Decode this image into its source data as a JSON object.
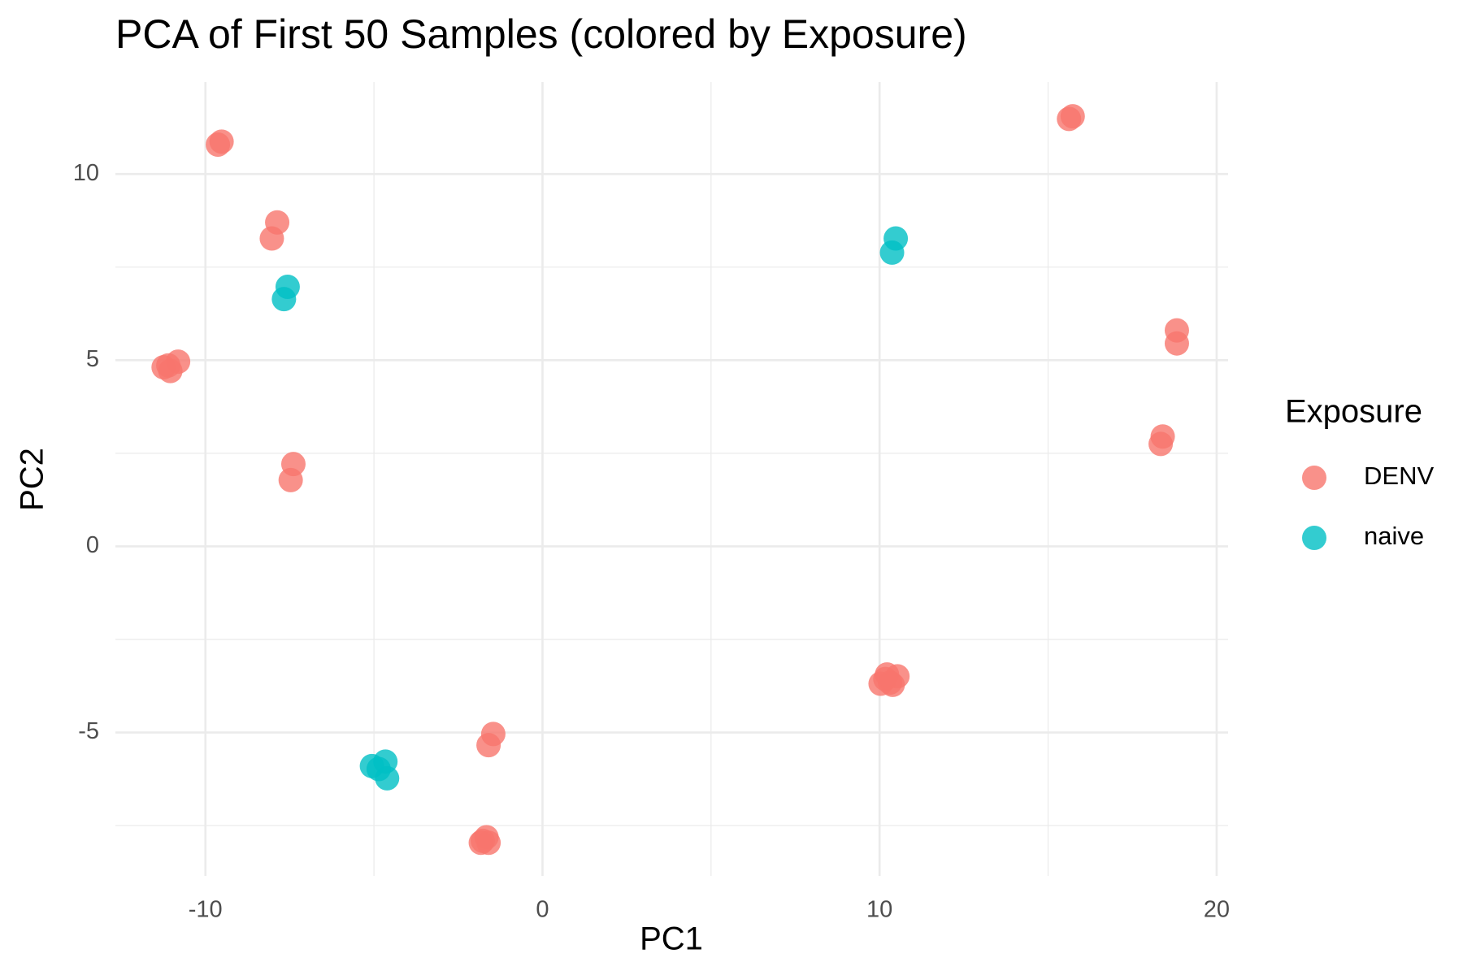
{
  "chart_data": {
    "type": "scatter",
    "title": "PCA of First 50 Samples (colored by Exposure)",
    "x_label": "PC1",
    "y_label": "PC2",
    "legend_title": "Exposure",
    "legend": "right",
    "grid": true,
    "xlim": [
      -12.67,
      20.34
    ],
    "ylim": [
      -8.85,
      12.47
    ],
    "xticks": [
      -10,
      0,
      10,
      20
    ],
    "yticks": [
      -5,
      0,
      5,
      10
    ],
    "series": [
      {
        "name": "DENV",
        "color": "#F8766D",
        "x": [
          -9.63,
          -9.52,
          -8.03,
          -7.87,
          -11.24,
          -10.81,
          -11.04,
          -11.1,
          -7.39,
          -7.47,
          -1.46,
          -1.6,
          -1.77,
          -1.66,
          -1.6,
          -1.83,
          10.17,
          10.53,
          10.31,
          10.03,
          10.39,
          10.22,
          15.62,
          15.73,
          18.82,
          18.82,
          18.4,
          18.34
        ],
        "y": [
          10.79,
          10.87,
          8.27,
          8.7,
          4.81,
          4.96,
          4.71,
          4.86,
          2.21,
          1.78,
          -5.04,
          -5.34,
          -7.91,
          -7.81,
          -7.96,
          -7.96,
          -3.56,
          -3.49,
          -3.66,
          -3.69,
          -3.72,
          -3.44,
          11.48,
          11.55,
          5.8,
          5.45,
          2.95,
          2.75
        ]
      },
      {
        "name": "naive",
        "color": "#00BFC4",
        "x": [
          -7.56,
          -7.67,
          10.48,
          10.37,
          -5.06,
          -4.66,
          -4.61,
          -4.86
        ],
        "y": [
          6.97,
          6.64,
          8.27,
          7.89,
          -5.9,
          -5.78,
          -6.23,
          -5.98
        ]
      }
    ]
  }
}
